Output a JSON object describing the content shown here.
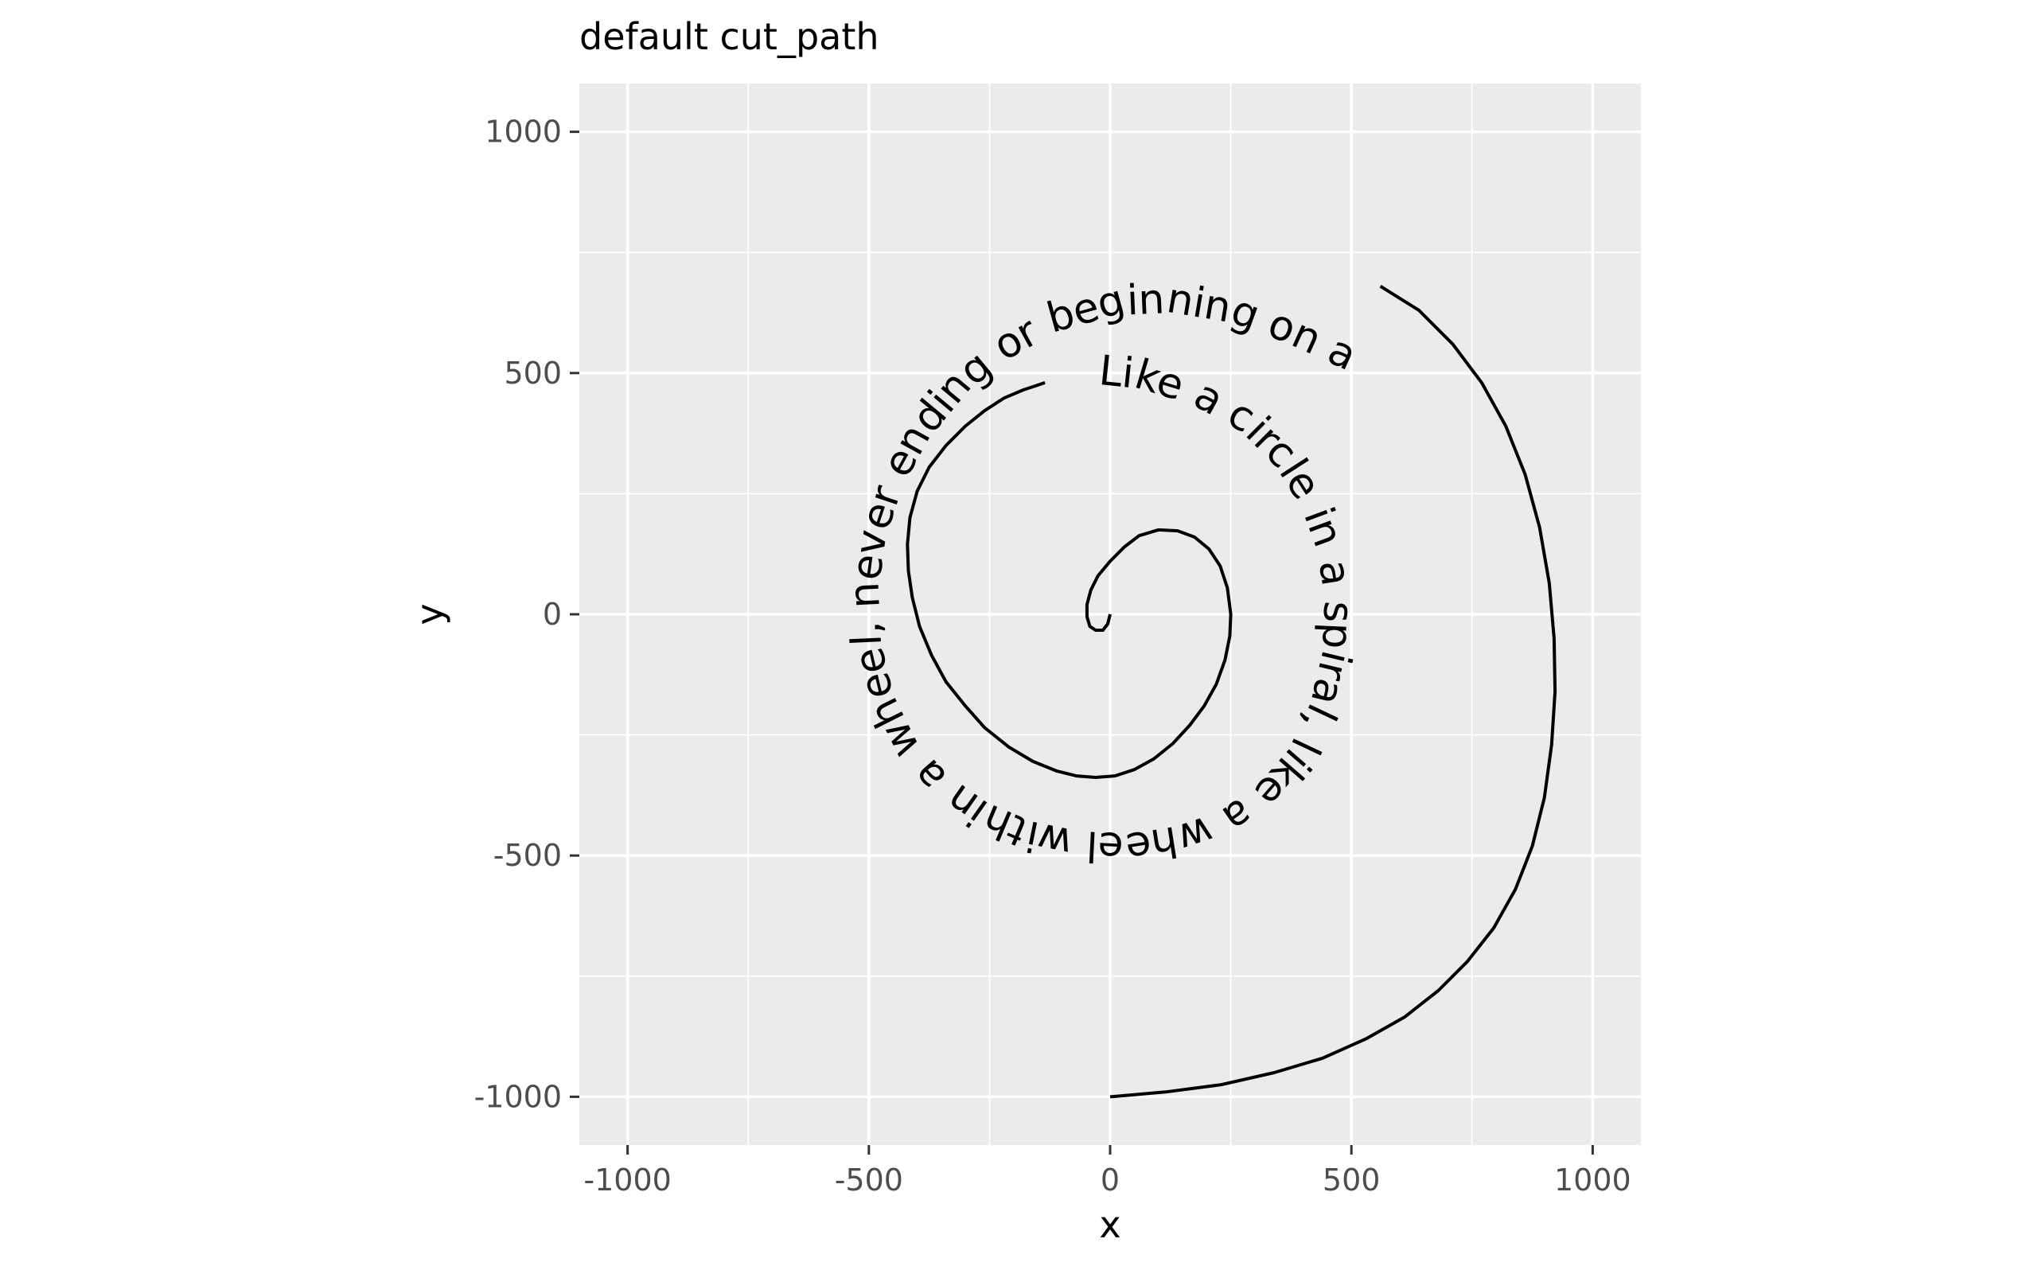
{
  "chart_data": {
    "type": "line",
    "title": "default cut_path",
    "xlabel": "x",
    "ylabel": "y",
    "xlim": [
      -1100,
      1100
    ],
    "ylim": [
      -1100,
      1100
    ],
    "x_ticks": [
      -1000,
      -500,
      0,
      500,
      1000
    ],
    "y_ticks": [
      -1000,
      -500,
      0,
      500,
      1000
    ],
    "x_tick_labels": [
      "-1000",
      "-500",
      "0",
      "500",
      "1000"
    ],
    "y_tick_labels": [
      "-1000",
      "-500",
      "0",
      "500",
      "1000"
    ],
    "grid": true,
    "panel_background": "#ebebeb",
    "grid_color": "#ffffff",
    "series": [
      {
        "color": "#000000",
        "x": [
          0,
          -5,
          -15,
          -30,
          -42,
          -48,
          -48,
          -40,
          -25,
          0,
          30,
          60,
          100,
          140,
          175,
          205,
          228,
          243,
          250,
          248,
          238,
          220,
          195,
          165,
          130,
          90,
          50,
          10,
          -30,
          -70,
          -110,
          -160,
          -210,
          -260,
          -300,
          -340,
          -370,
          -395,
          -410,
          -418,
          -420,
          -415,
          -400,
          -375,
          -340,
          -300,
          -260,
          -220,
          -180,
          -150,
          -135,
          560,
          640,
          710,
          770,
          820,
          860,
          890,
          910,
          920,
          922,
          915,
          900,
          875,
          840,
          795,
          740,
          680,
          610,
          530,
          440,
          340,
          230,
          115,
          0
        ],
        "y": [
          0,
          -20,
          -33,
          -33,
          -25,
          -5,
          20,
          50,
          80,
          110,
          140,
          163,
          175,
          173,
          160,
          135,
          100,
          55,
          0,
          -45,
          -95,
          -145,
          -190,
          -230,
          -268,
          -300,
          -322,
          -335,
          -338,
          -335,
          -325,
          -305,
          -275,
          -235,
          -190,
          -140,
          -85,
          -25,
          35,
          90,
          145,
          200,
          255,
          305,
          350,
          390,
          422,
          448,
          465,
          475,
          480,
          680,
          630,
          560,
          480,
          390,
          290,
          180,
          65,
          -50,
          -160,
          -270,
          -380,
          -480,
          -570,
          -650,
          -720,
          -780,
          -835,
          -880,
          -920,
          -950,
          -975,
          -990,
          -1000
        ]
      }
    ],
    "labels": [
      {
        "text": "Like a circle in a spiral, like a wheel within a wheel, never ending or beginning on an ever spinning reel"
      }
    ]
  }
}
